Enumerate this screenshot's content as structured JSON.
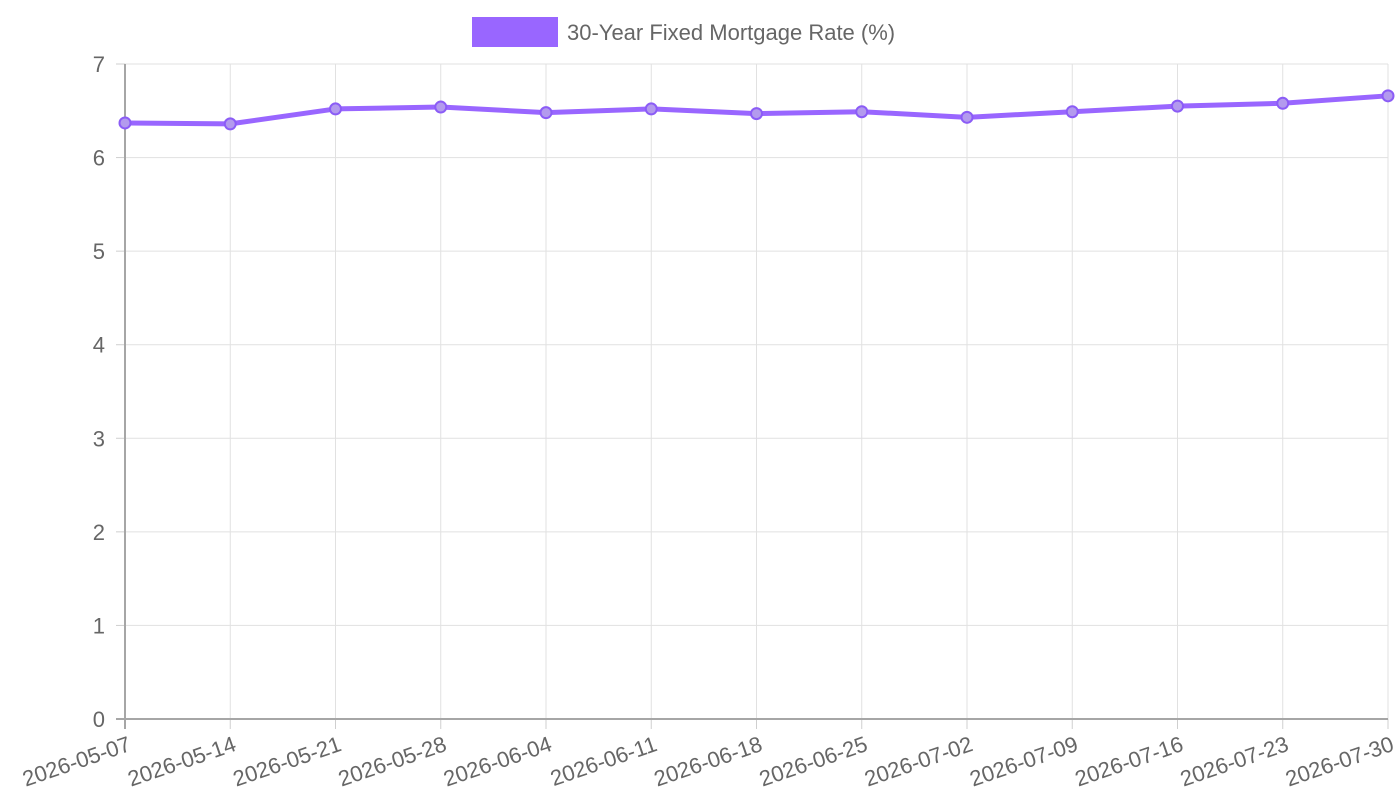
{
  "chart_data": {
    "type": "line",
    "x": [
      "2026-05-07",
      "2026-05-14",
      "2026-05-21",
      "2026-05-28",
      "2026-06-04",
      "2026-06-11",
      "2026-06-18",
      "2026-06-25",
      "2026-07-02",
      "2026-07-09",
      "2026-07-16",
      "2026-07-23",
      "2026-07-30"
    ],
    "series": [
      {
        "name": "30-Year Fixed Mortgage Rate (%)",
        "values": [
          6.37,
          6.36,
          6.52,
          6.54,
          6.48,
          6.52,
          6.47,
          6.49,
          6.43,
          6.49,
          6.55,
          6.58,
          6.66
        ],
        "color": "#9966ff"
      }
    ],
    "ylim": [
      0,
      7
    ],
    "yticks": [
      "0",
      "1",
      "2",
      "3",
      "4",
      "5",
      "6",
      "7"
    ],
    "grid": true,
    "legend_position": "top-center"
  }
}
